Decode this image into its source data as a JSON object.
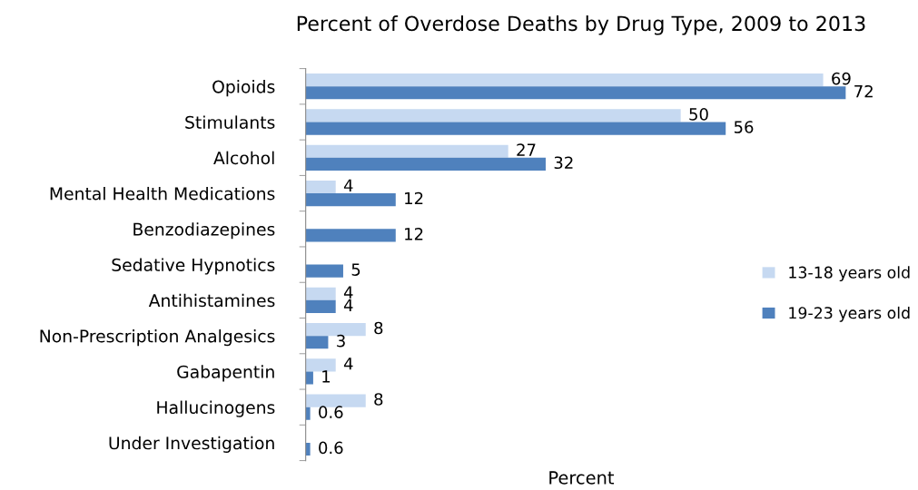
{
  "chart_data": {
    "type": "bar",
    "orientation": "horizontal",
    "title": "Percent of Overdose Deaths by Drug Type, 2009 to 2013",
    "xlabel": "Percent",
    "categories": [
      "Opioids",
      "Stimulants",
      "Alcohol",
      "Mental Health Medications",
      "Benzodiazepines",
      "Sedative Hypnotics",
      "Antihistamines",
      "Non-Prescription Analgesics",
      "Gabapentin",
      "Hallucinogens",
      "Under Investigation"
    ],
    "series": [
      {
        "name": "13-18 years old",
        "color": "#c6d9f1",
        "values": [
          69,
          50,
          27,
          4,
          null,
          null,
          4,
          8,
          4,
          8,
          null
        ]
      },
      {
        "name": "19-23 years old",
        "color": "#4f81bd",
        "values": [
          72,
          56,
          32,
          12,
          12,
          5,
          4,
          3,
          1,
          0.6,
          0.6
        ]
      }
    ],
    "data_labels": true,
    "legend": "right",
    "grid": false,
    "tick_labels": "y"
  }
}
